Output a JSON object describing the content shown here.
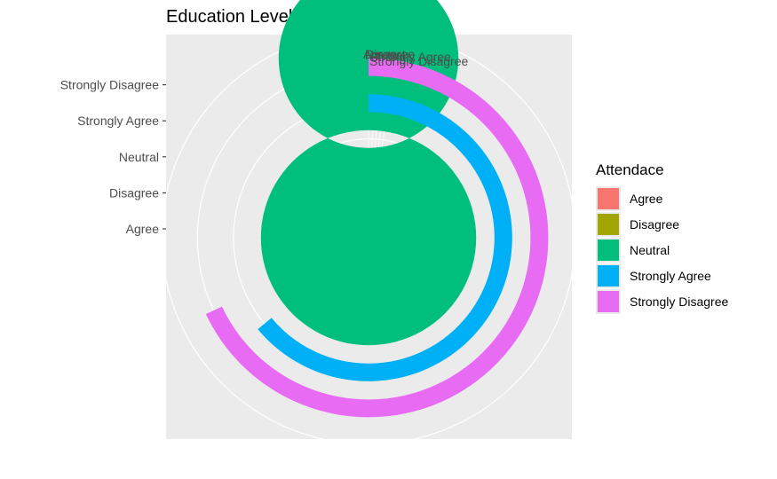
{
  "chart_data": {
    "type": "bar",
    "coord": "polar",
    "title": "Education Level Distribution",
    "categories": [
      "Agree",
      "Disagree",
      "Neutral",
      "Strongly Agree",
      "Strongly Disagree"
    ],
    "values": [
      1,
      3,
      25,
      16,
      17
    ],
    "theta_max": 25,
    "colors": [
      "#F8766D",
      "#A3A500",
      "#00BF7D",
      "#00B0F6",
      "#E76BF3"
    ],
    "legend": {
      "title": "Attendace",
      "position": "right",
      "items": [
        "Agree",
        "Disagree",
        "Neutral",
        "Strongly Agree",
        "Strongly Disagree"
      ]
    },
    "y_ticks": [
      "Agree",
      "Disagree",
      "Neutral",
      "Strongly Agree",
      "Strongly Disagree"
    ],
    "theta_labels": [
      "Agree",
      "Disagree",
      "Neutral",
      "Strongly Agree",
      "Strongly Disagree"
    ],
    "panel_background": "#EBEBEB",
    "grid_color": "#FFFFFF",
    "grid": true
  }
}
